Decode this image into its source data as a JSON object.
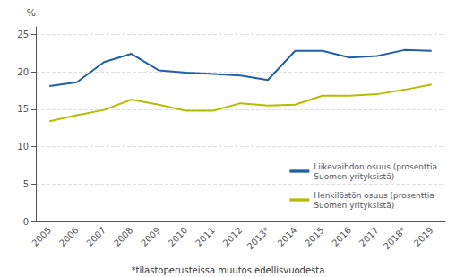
{
  "chart_data": {
    "type": "line",
    "categories": [
      "2005",
      "2006",
      "2007",
      "2008",
      "2009",
      "2010",
      "2011",
      "2012",
      "2013*",
      "2014",
      "2015",
      "2016",
      "2017",
      "2018*",
      "2019"
    ],
    "series": [
      {
        "name": "Liikevaihdon osuus (prosenttia\nSuomen yrityksistä)",
        "color": "#1f5fa6",
        "values": [
          18.1,
          18.6,
          21.3,
          22.4,
          20.2,
          19.9,
          19.7,
          19.5,
          18.9,
          22.8,
          22.8,
          21.9,
          22.1,
          22.9,
          22.8
        ]
      },
      {
        "name": "Henkilöstön osuus (prosenttia\nSuomen yrityksistä)",
        "color": "#b5bd00",
        "values": [
          13.4,
          14.2,
          14.9,
          16.3,
          15.6,
          14.8,
          14.8,
          15.8,
          15.5,
          15.6,
          16.8,
          16.8,
          17.0,
          17.6,
          18.3
        ]
      }
    ],
    "ylabel": "%",
    "ylim": [
      0,
      26
    ],
    "yticks": [
      0,
      5,
      10,
      15,
      20,
      25
    ],
    "annotation": "*tilastoperusteissa muutos edellisvuodesta",
    "grid": true,
    "legend": "lower right"
  }
}
